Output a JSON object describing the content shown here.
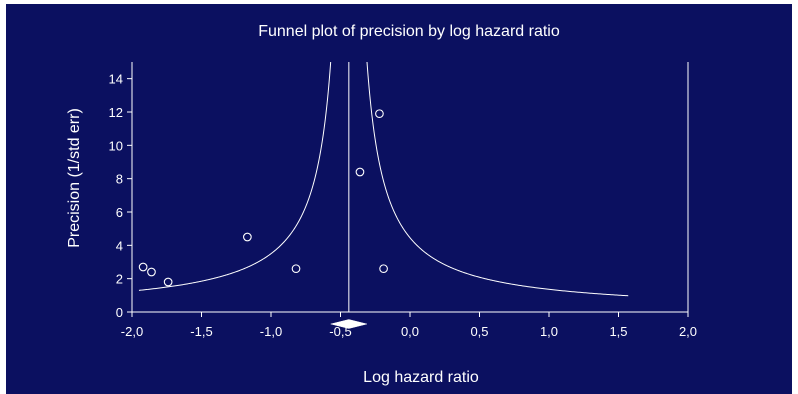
{
  "chart_data": {
    "type": "scatter",
    "title": "Funnel plot of precision by log hazard ratio",
    "xlabel": "Log hazard ratio",
    "ylabel": "Precision (1/std err)",
    "xlim": [
      -2.0,
      2.0
    ],
    "ylim": [
      0,
      15
    ],
    "x_ticks": [
      "-2,0",
      "-1,5",
      "-1,0",
      "-0,5",
      "0,0",
      "0,5",
      "1,0",
      "1,5",
      "2,0"
    ],
    "x_tick_values": [
      -2.0,
      -1.5,
      -1.0,
      -0.5,
      0.0,
      0.5,
      1.0,
      1.5,
      2.0
    ],
    "y_ticks": [
      "0",
      "2",
      "4",
      "6",
      "8",
      "10",
      "12",
      "14"
    ],
    "y_tick_values": [
      0,
      2,
      4,
      6,
      8,
      10,
      12,
      14
    ],
    "grid": false,
    "pooled_estimate": -0.44,
    "pooled_ci": [
      -0.57,
      -0.31
    ],
    "funnel_x_range": [
      -1.95,
      1.57
    ],
    "points": [
      {
        "x": -1.92,
        "y": 2.7
      },
      {
        "x": -1.86,
        "y": 2.4
      },
      {
        "x": -1.74,
        "y": 1.8
      },
      {
        "x": -1.17,
        "y": 4.5
      },
      {
        "x": -0.82,
        "y": 2.6
      },
      {
        "x": -0.36,
        "y": 8.4
      },
      {
        "x": -0.22,
        "y": 11.9
      },
      {
        "x": -0.19,
        "y": 2.6
      }
    ],
    "colors": {
      "background": "#0b1060",
      "foreground": "#ffffff"
    }
  }
}
